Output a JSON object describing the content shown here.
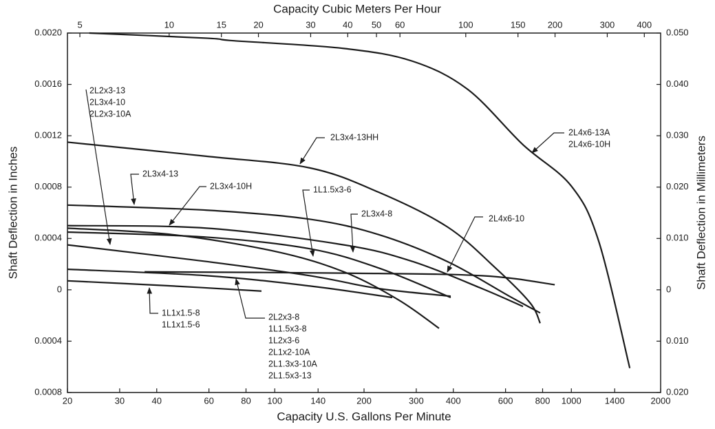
{
  "chart_data": {
    "type": "line",
    "x2label": "Capacity Cubic Meters Per Hour",
    "xlabel": "Capacity U.S. Gallons Per Minute",
    "ylabel": "Shaft Deflection in Inches",
    "y2label": "Shaft Deflection in Millimeters",
    "xscale": "log",
    "xlim": [
      20,
      2000
    ],
    "xticks": [
      20,
      30,
      40,
      60,
      80,
      100,
      140,
      200,
      300,
      400,
      600,
      800,
      1000,
      1400,
      2000
    ],
    "x2lim": [
      4.54,
      454
    ],
    "x2ticks": [
      5,
      10,
      15,
      20,
      30,
      40,
      50,
      60,
      100,
      150,
      200,
      300,
      400
    ],
    "ylim": [
      -0.0008,
      0.002
    ],
    "yticks": [
      {
        "value": 0.002,
        "label": "0.0020"
      },
      {
        "value": 0.0016,
        "label": "0.0016"
      },
      {
        "value": 0.0012,
        "label": "0.0012"
      },
      {
        "value": 0.0008,
        "label": "0.0008"
      },
      {
        "value": 0.0004,
        "label": "0.0004"
      },
      0,
      {
        "value": -0.0004,
        "label": "0.0004"
      },
      {
        "value": -0.0008,
        "label": "0.0008"
      }
    ],
    "y2lim": [
      -0.02,
      0.05
    ],
    "y2ticks": [
      {
        "value": 0.05,
        "label": "0.050"
      },
      {
        "value": 0.04,
        "label": "0.040"
      },
      {
        "value": 0.03,
        "label": "0.030"
      },
      {
        "value": 0.02,
        "label": "0.020"
      },
      {
        "value": 0.01,
        "label": "0.010"
      },
      0,
      {
        "value": -0.01,
        "label": "0.010"
      },
      {
        "value": -0.02,
        "label": "0.020"
      }
    ],
    "color": "#1a1a1a",
    "series": [
      {
        "x": [
          23.7,
          58.9,
          72.9,
          171,
          292,
          448,
          687,
          998,
          1236,
          1574
        ],
        "values": [
          0.002,
          0.00196,
          0.00194,
          0.00188,
          0.00178,
          0.00156,
          0.00113,
          0.00081,
          0.00038,
          -0.00061
        ]
      },
      {
        "x": [
          20,
          59,
          131,
          224,
          382,
          555,
          725,
          785
        ],
        "values": [
          0.00115,
          0.00104,
          0.00095,
          0.00076,
          0.00049,
          0.00017,
          -0.0001,
          -0.00026
        ]
      },
      {
        "x": [
          20,
          59,
          131,
          224,
          382,
          618,
          785
        ],
        "values": [
          0.00066,
          0.00062,
          0.00055,
          0.00043,
          0.00022,
          -5e-05,
          -0.00018
        ]
      },
      {
        "x": [
          20,
          59,
          171,
          292,
          499,
          687
        ],
        "values": [
          0.0005,
          0.00048,
          0.00035,
          0.00022,
          1e-05,
          -0.00013
        ]
      },
      {
        "x": [
          20,
          45.1,
          100,
          171,
          262,
          358
        ],
        "values": [
          0.00048,
          0.00043,
          0.0003,
          0.00014,
          -8e-05,
          -0.0003
        ]
      },
      {
        "x": [
          20,
          59,
          131,
          224,
          392
        ],
        "values": [
          0.00045,
          0.00041,
          0.00032,
          0.00017,
          -6e-05
        ]
      },
      {
        "x": [
          20,
          59,
          131,
          224,
          392
        ],
        "values": [
          0.00035,
          0.00022,
          0.00011,
          1e-05,
          -5e-05
        ]
      },
      {
        "x": [
          36.4,
          171,
          499,
          879
        ],
        "values": [
          0.00014,
          0.00013,
          0.00011,
          4e-05
        ]
      },
      {
        "x": [
          20,
          59,
          131,
          249
        ],
        "values": [
          0.00016,
          0.00011,
          3e-05,
          -6e-05
        ]
      },
      {
        "x": [
          20,
          45.1,
          90.2
        ],
        "values": [
          7e-05,
          3e-05,
          -1e-05
        ]
      }
    ],
    "annotations": [
      {
        "lines": [
          "2L2x3-13",
          "2L3x4-10",
          "2L2x3-10A"
        ]
      },
      {
        "lines": [
          "2L3x4-13HH"
        ]
      },
      {
        "lines": [
          "2L4x6-13A",
          "2L4x6-10H"
        ]
      },
      {
        "lines": [
          "2L3x4-13"
        ]
      },
      {
        "lines": [
          "2L3x4-10H"
        ]
      },
      {
        "lines": [
          "1L1.5x3-6"
        ]
      },
      {
        "lines": [
          "2L3x4-8"
        ]
      },
      {
        "lines": [
          "2L4x6-10"
        ]
      },
      {
        "lines": [
          "1L1x1.5-8",
          "1L1x1.5-6"
        ]
      },
      {
        "lines": [
          "2L2x3-8",
          "1L1.5x3-8",
          "1L2x3-6",
          "2L1x2-10A",
          "2L1.3x3-10A",
          "2L1.5x3-13"
        ]
      }
    ]
  }
}
